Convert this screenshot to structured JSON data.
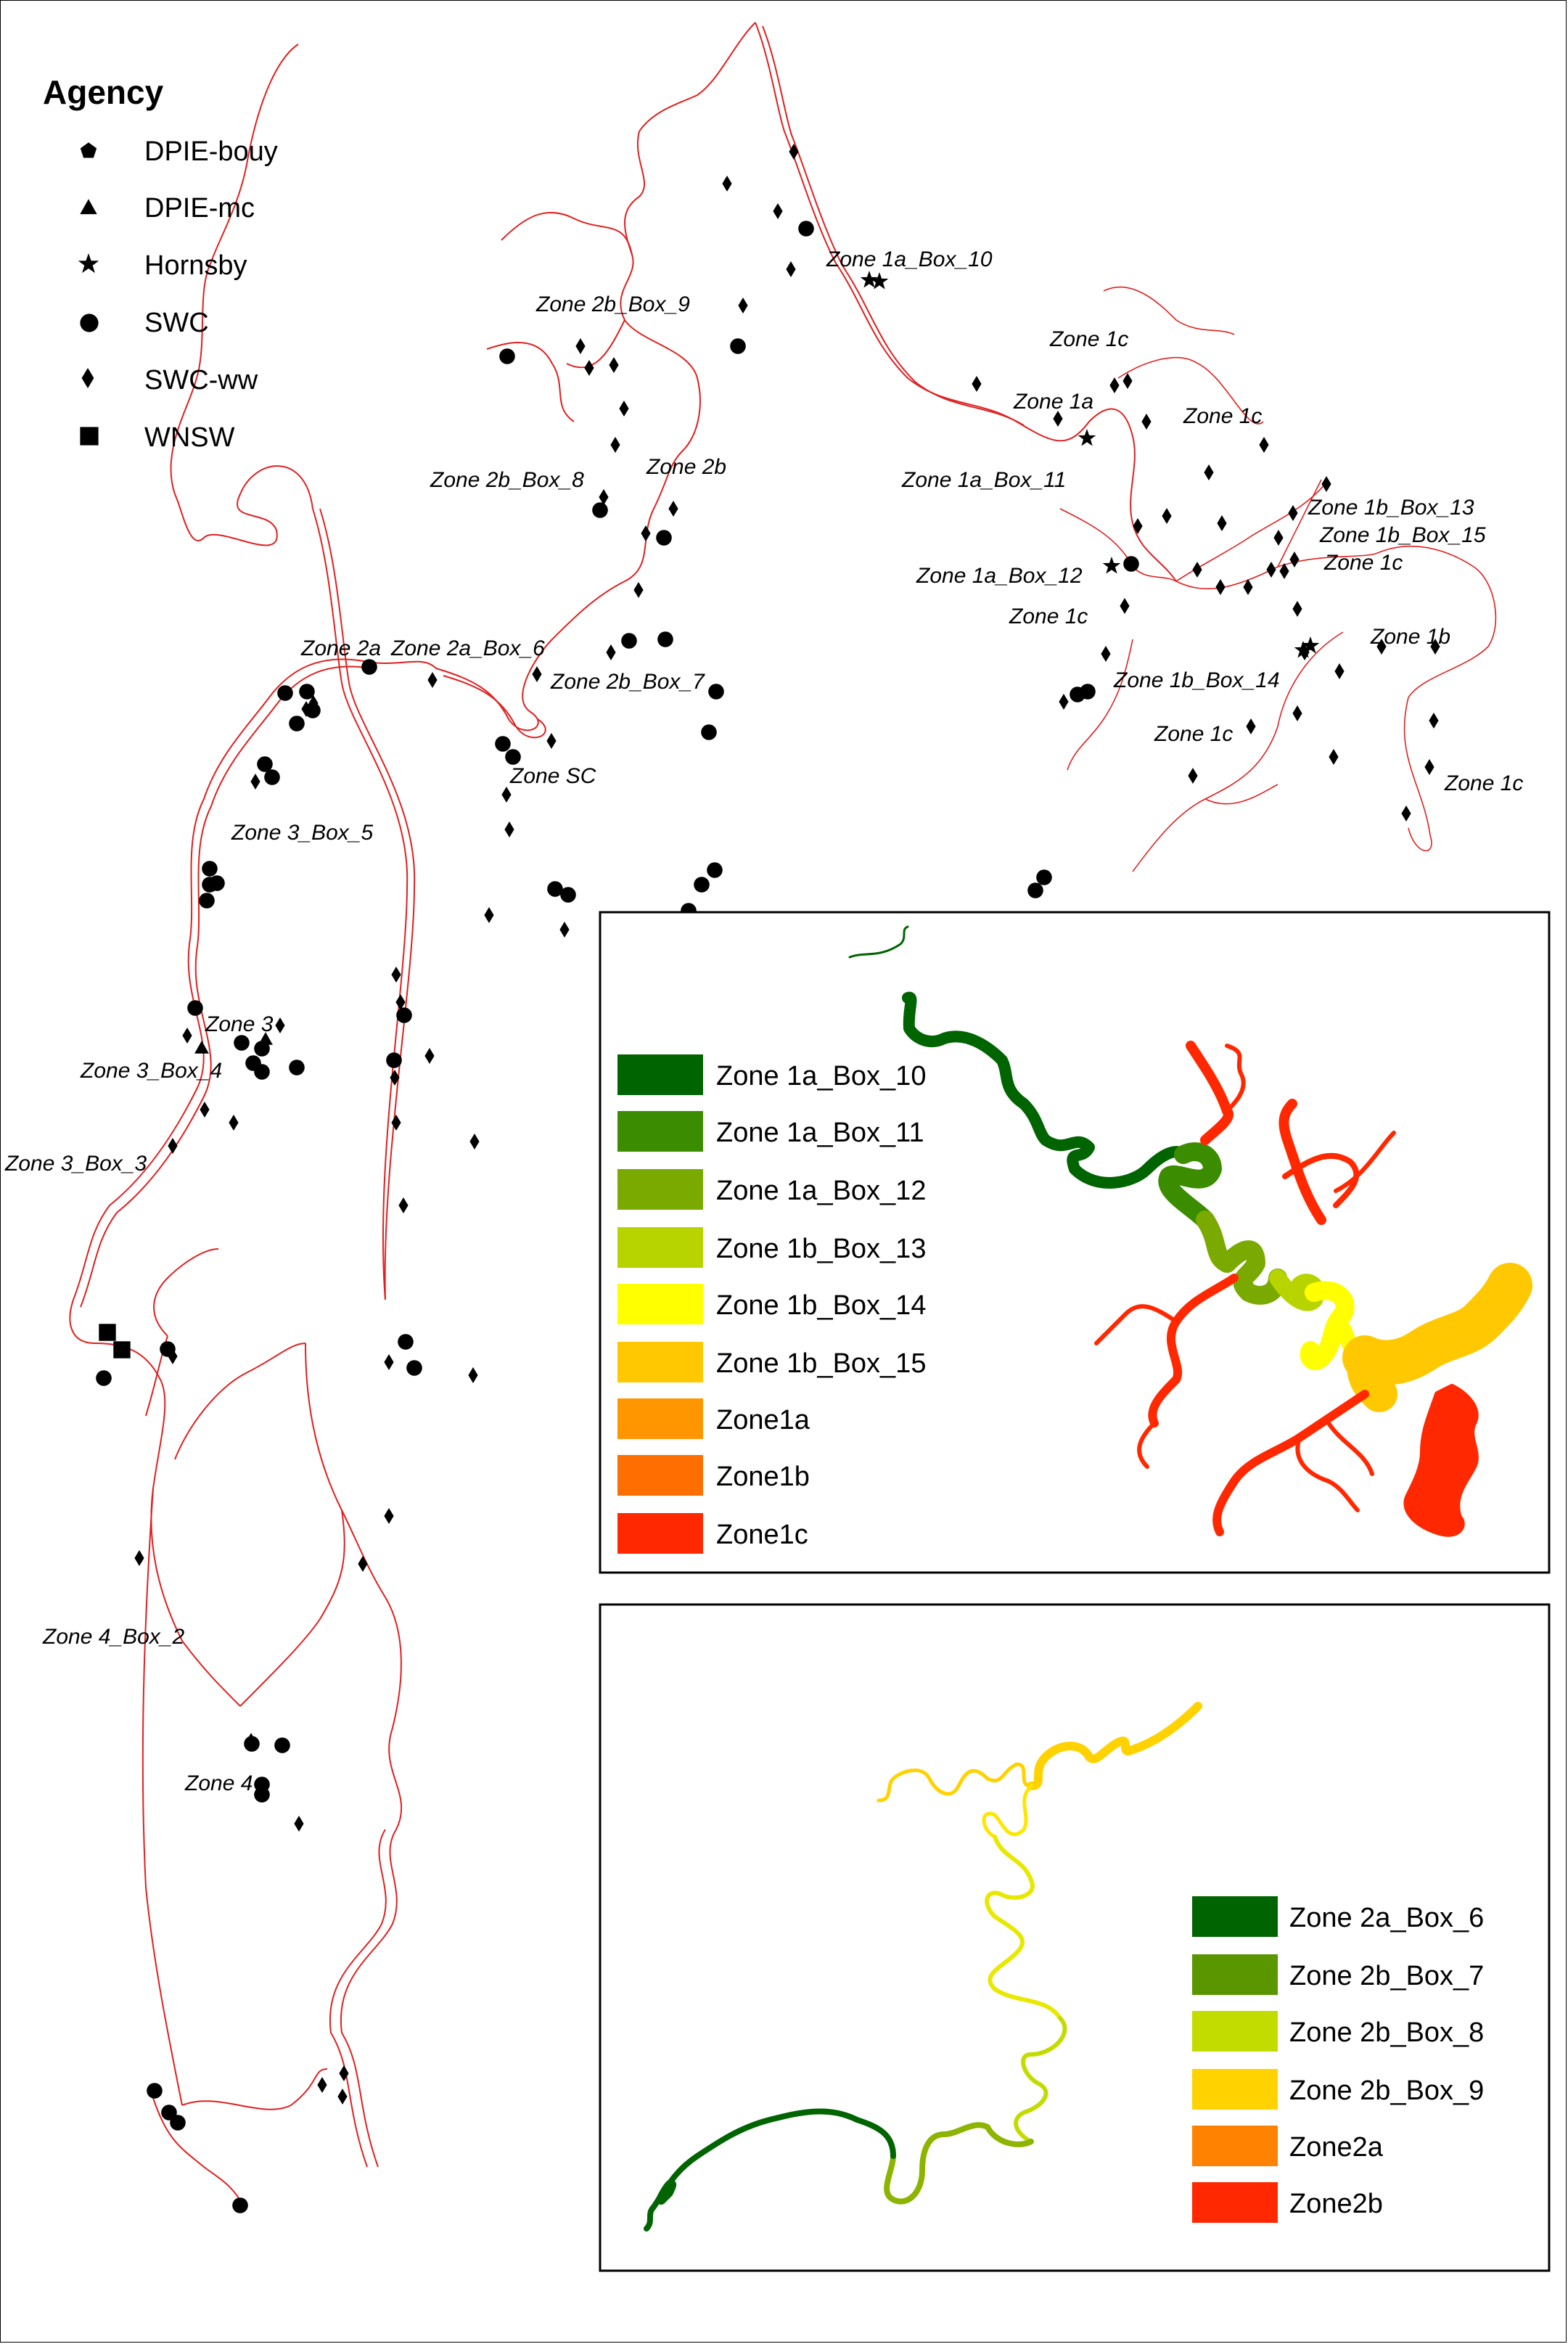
{
  "agency_legend": {
    "title": "Agency",
    "items": [
      {
        "label": "DPIE-bouy",
        "symbol": "pentagon"
      },
      {
        "label": "DPIE-mc",
        "symbol": "triangle"
      },
      {
        "label": "Hornsby",
        "symbol": "star"
      },
      {
        "label": "SWC",
        "symbol": "circle"
      },
      {
        "label": "SWC-ww",
        "symbol": "diamond"
      },
      {
        "label": "WNSW",
        "symbol": "square"
      }
    ]
  },
  "zone_labels": [
    "Zone 1a_Box_10",
    "Zone 1c",
    "Zone 1a",
    "Zone 1c",
    "Zone 1a_Box_11",
    "Zone 1b_Box_13",
    "Zone 1b_Box_15",
    "Zone 1a_Box_12",
    "Zone 1c",
    "Zone 1c",
    "Zone 1b",
    "Zone 1b_Box_14",
    "Zone 1c",
    "Zone 1c",
    "Zone 2b_Box_9",
    "Zone 2b_Box_8",
    "Zone 2b",
    "Zone 2a",
    "Zone 2a_Box_6",
    "Zone 2b_Box_7",
    "Zone SC",
    "Zone 3_Box_5",
    "Zone 3",
    "Zone 3_Box_4",
    "Zone 3_Box_3",
    "Zone 4_Box_2",
    "Zone 4"
  ],
  "inset1": {
    "legend": [
      {
        "label": "Zone 1a_Box_10",
        "color": "#006400"
      },
      {
        "label": "Zone 1a_Box_11",
        "color": "#3c8c00"
      },
      {
        "label": "Zone 1a_Box_12",
        "color": "#7aaa00"
      },
      {
        "label": "Zone 1b_Box_13",
        "color": "#b8d400"
      },
      {
        "label": "Zone 1b_Box_14",
        "color": "#ffff00"
      },
      {
        "label": "Zone 1b_Box_15",
        "color": "#ffc800"
      },
      {
        "label": "Zone1a",
        "color": "#ff9600"
      },
      {
        "label": "Zone1b",
        "color": "#ff6e00"
      },
      {
        "label": "Zone1c",
        "color": "#ff2800"
      }
    ]
  },
  "inset2": {
    "legend": [
      {
        "label": "Zone 2a_Box_6",
        "color": "#006400"
      },
      {
        "label": "Zone 2b_Box_7",
        "color": "#5a9600"
      },
      {
        "label": "Zone 2b_Box_8",
        "color": "#c3dc00"
      },
      {
        "label": "Zone 2b_Box_9",
        "color": "#ffd200"
      },
      {
        "label": "Zone2a",
        "color": "#ff8200"
      },
      {
        "label": "Zone2b",
        "color": "#ff2800"
      }
    ]
  }
}
